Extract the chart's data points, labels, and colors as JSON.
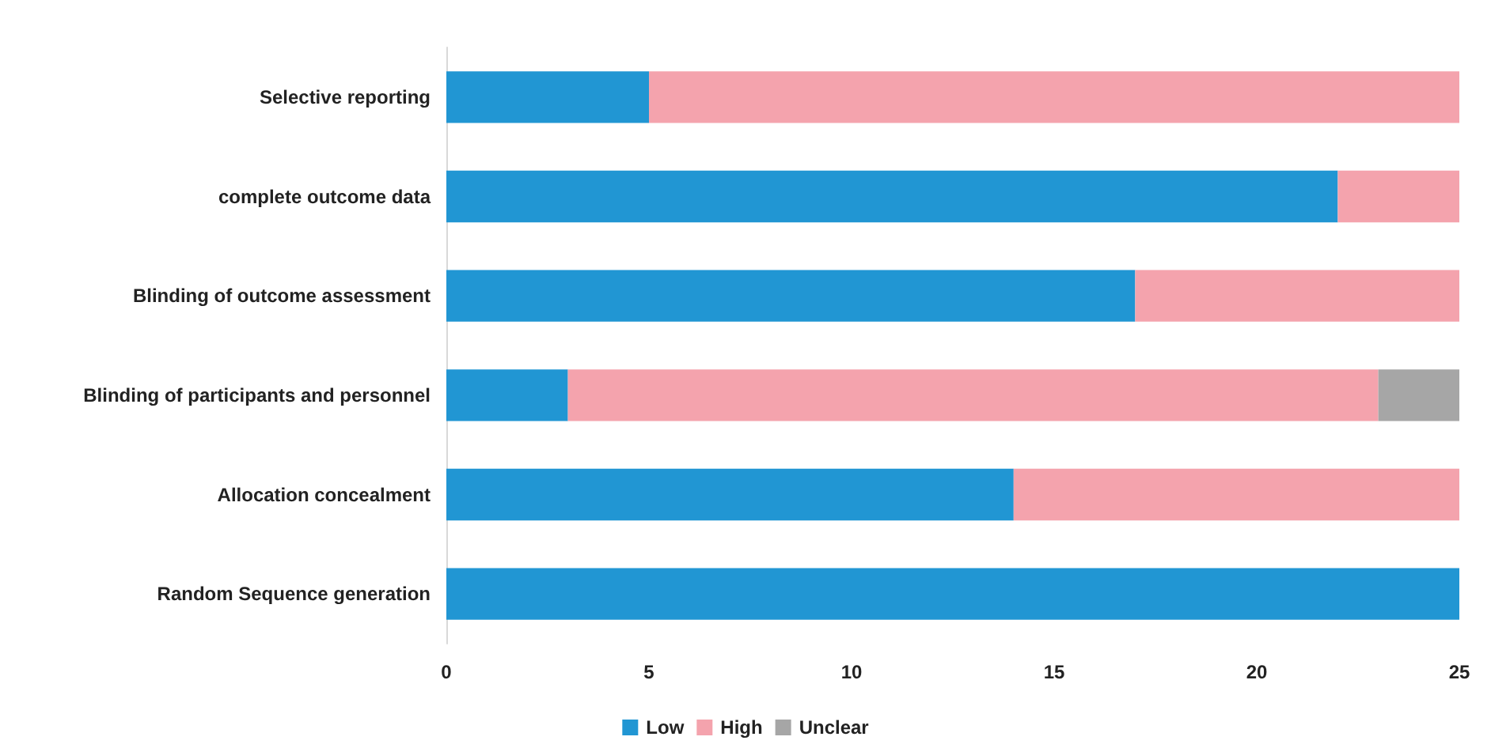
{
  "chart_data": {
    "type": "bar",
    "orientation": "horizontal",
    "stacked": true,
    "categories": [
      "Selective reporting",
      "complete outcome data",
      "Blinding of outcome assessment",
      "Blinding of participants and personnel",
      "Allocation concealment",
      "Random Sequence generation"
    ],
    "series": [
      {
        "name": "Low",
        "color": "#2196d3",
        "values": [
          5,
          22,
          17,
          3,
          14,
          25
        ]
      },
      {
        "name": "High",
        "color": "#f4a3ad",
        "values": [
          20,
          3,
          8,
          20,
          11,
          0
        ]
      },
      {
        "name": "Unclear",
        "color": "#a6a6a6",
        "values": [
          0,
          0,
          0,
          2,
          0,
          0
        ]
      }
    ],
    "xlim": [
      0,
      25
    ],
    "xticks": [
      0,
      5,
      10,
      15,
      20,
      25
    ],
    "grid": false,
    "legend": "bottom"
  }
}
